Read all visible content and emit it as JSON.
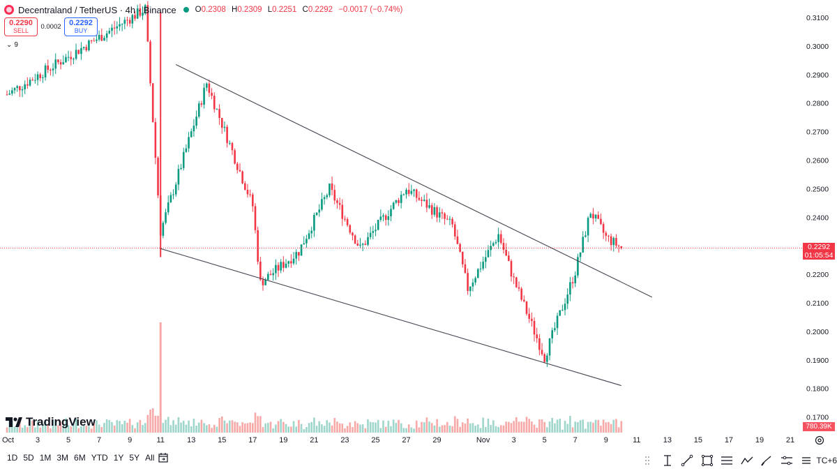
{
  "header": {
    "symbol": "Decentraland / TetherUS · 4h · Binance",
    "open_label": "O",
    "open": "0.2308",
    "high_label": "H",
    "high": "0.2309",
    "low_label": "L",
    "low": "0.2251",
    "close_label": "C",
    "close": "0.2292",
    "change": "−0.0017 (−0.74%)"
  },
  "trade": {
    "sell_price": "0.2290",
    "sell_label": "SELL",
    "spread": "0.0002",
    "buy_price": "0.2292",
    "buy_label": "BUY"
  },
  "indicators_collapse": {
    "count": "9"
  },
  "brand": {
    "name": "TradingView"
  },
  "price_axis": {
    "ticks": [
      "0.3100",
      "0.3000",
      "0.2900",
      "0.2800",
      "0.2700",
      "0.2600",
      "0.2500",
      "0.2400",
      "0.2300",
      "0.2200",
      "0.2100",
      "0.2000",
      "0.1900",
      "0.1800",
      "0.1700"
    ],
    "current_price": "0.2292",
    "countdown": "01:05:54",
    "volume_label": "780.39K"
  },
  "time_axis": {
    "ticks": [
      "Oct",
      "3",
      "5",
      "7",
      "9",
      "11",
      "13",
      "15",
      "17",
      "19",
      "21",
      "23",
      "25",
      "27",
      "29",
      "Nov",
      "3",
      "5",
      "7",
      "9",
      "11",
      "13",
      "15",
      "17",
      "19",
      "21"
    ]
  },
  "ranges": [
    "1D",
    "5D",
    "1M",
    "3M",
    "6M",
    "YTD",
    "1Y",
    "5Y",
    "All"
  ],
  "toolbar": {
    "timezone": "TC+6"
  },
  "colors": {
    "up": "#089981",
    "down": "#f23645",
    "line": "#434651"
  },
  "chart_data": {
    "type": "candlestick",
    "title": "",
    "xlabel": "",
    "ylabel": "",
    "ylim": [
      0.165,
      0.315
    ],
    "x_range": [
      "Oct 1",
      "Nov 21"
    ],
    "interval": "4h",
    "key_prices": [
      {
        "date": "Oct 1",
        "price": 0.283
      },
      {
        "date": "Oct 10",
        "price": 0.313
      },
      {
        "date": "Oct 11",
        "price": 0.235
      },
      {
        "date": "Oct 14",
        "price": 0.287
      },
      {
        "date": "Oct 17",
        "price": 0.244
      },
      {
        "date": "Oct 17",
        "price": 0.217
      },
      {
        "date": "Oct 20",
        "price": 0.228
      },
      {
        "date": "Oct 22",
        "price": 0.25
      },
      {
        "date": "Oct 24",
        "price": 0.229
      },
      {
        "date": "Oct 27",
        "price": 0.25
      },
      {
        "date": "Oct 30",
        "price": 0.237
      },
      {
        "date": "Oct 31",
        "price": 0.215
      },
      {
        "date": "Nov 2",
        "price": 0.234
      },
      {
        "date": "Nov 3",
        "price": 0.218
      },
      {
        "date": "Nov 5",
        "price": 0.191
      },
      {
        "date": "Nov 7",
        "price": 0.221
      },
      {
        "date": "Nov 8",
        "price": 0.242
      },
      {
        "date": "Nov 9",
        "price": 0.233
      },
      {
        "date": "Nov 10",
        "price": 0.2292
      }
    ],
    "trendlines": [
      {
        "name": "upper",
        "from": {
          "date": "Oct 12",
          "price": 0.2935
        },
        "to": {
          "date": "Nov 12",
          "price": 0.212
        }
      },
      {
        "name": "lower",
        "from": {
          "date": "Oct 11",
          "price": 0.229
        },
        "to": {
          "date": "Nov 10",
          "price": 0.181
        }
      }
    ],
    "current_price_line": 0.2292,
    "grid": false
  }
}
